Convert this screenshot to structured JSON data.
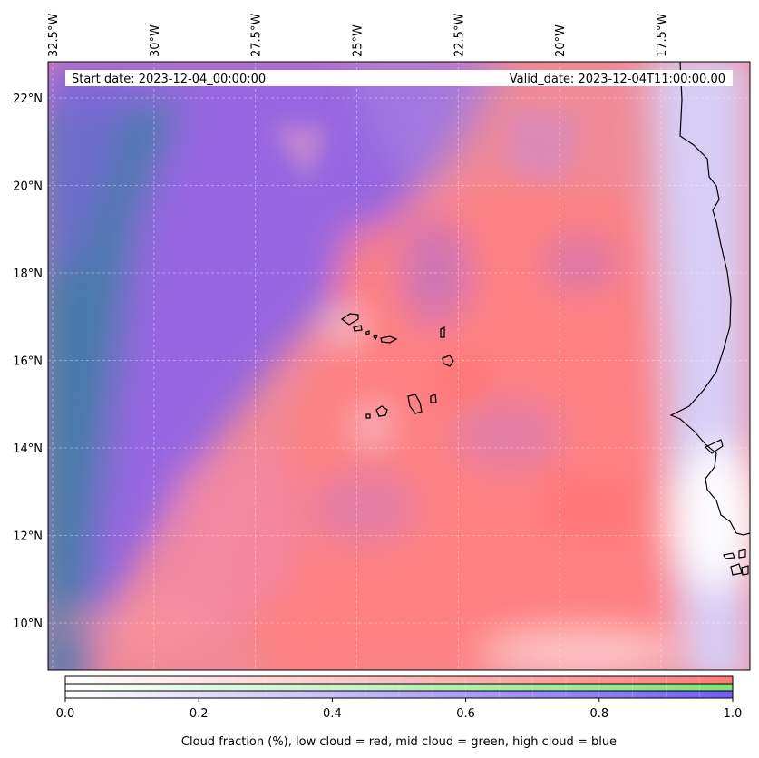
{
  "header": {
    "start_date": "Start date: 2023-12-04_00:00:00",
    "valid_date": "Valid_date: 2023-12-04T11:00:00.00"
  },
  "map": {
    "lon_ticks": [
      {
        "value": -32.5,
        "label": "32.5°W"
      },
      {
        "value": -30.0,
        "label": "30°W"
      },
      {
        "value": -27.5,
        "label": "27.5°W"
      },
      {
        "value": -25.0,
        "label": "25°W"
      },
      {
        "value": -22.5,
        "label": "22.5°W"
      },
      {
        "value": -20.0,
        "label": "20°W"
      },
      {
        "value": -17.5,
        "label": "17.5°W"
      }
    ],
    "lat_ticks": [
      {
        "value": 22,
        "label": "22°N"
      },
      {
        "value": 20,
        "label": "20°N"
      },
      {
        "value": 18,
        "label": "18°N"
      },
      {
        "value": 16,
        "label": "16°N"
      },
      {
        "value": 14,
        "label": "14°N"
      },
      {
        "value": 12,
        "label": "12°N"
      },
      {
        "value": 10,
        "label": "10°N"
      }
    ],
    "layer_colors": {
      "low_cloud": "#ff7a78",
      "mid_cloud": "#7ee37a",
      "high_cloud": "#6f5cf0"
    }
  },
  "colorbar": {
    "range": [
      0.0,
      1.0
    ],
    "ticks": [
      "0.0",
      "0.2",
      "0.4",
      "0.6",
      "0.8",
      "1.0"
    ],
    "label": "Cloud fraction (%), low cloud = red, mid cloud = green, high cloud = blue",
    "rows": [
      {
        "name": "low cloud",
        "color": "#ff7a78"
      },
      {
        "name": "mid cloud",
        "color": "#7ee37a"
      },
      {
        "name": "high cloud",
        "color": "#6f5cf0"
      }
    ]
  }
}
